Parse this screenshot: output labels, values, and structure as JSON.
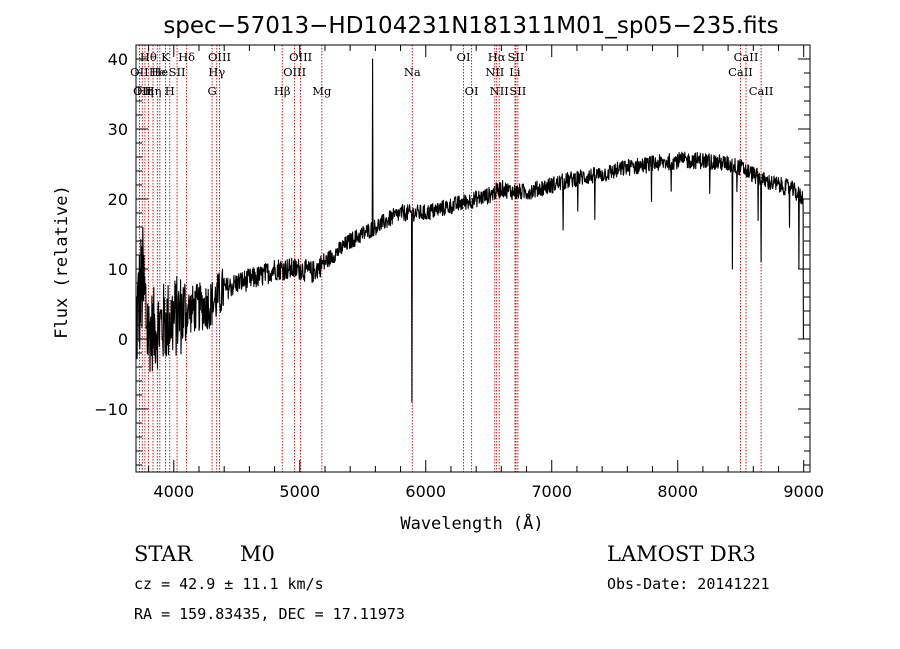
{
  "chart_data": {
    "type": "line",
    "title": "spec−57013−HD104231N181311M01_sp05−235.fits",
    "xlabel": "Wavelength (Å)",
    "ylabel": "Flux (relative)",
    "xlim": [
      3700,
      9050
    ],
    "ylim": [
      -19,
      42
    ],
    "xticks": [
      {
        "value": 4000,
        "label": "4000"
      },
      {
        "value": 5000,
        "label": "5000"
      },
      {
        "value": 6000,
        "label": "6000"
      },
      {
        "value": 7000,
        "label": "7000"
      },
      {
        "value": 8000,
        "label": "8000"
      },
      {
        "value": 9000,
        "label": "9000"
      }
    ],
    "yticks": [
      {
        "value": -10,
        "label": "−10"
      },
      {
        "value": 0,
        "label": "0"
      },
      {
        "value": 10,
        "label": "10"
      },
      {
        "value": 20,
        "label": "20"
      },
      {
        "value": 30,
        "label": "30"
      },
      {
        "value": 40,
        "label": "40"
      }
    ],
    "line_color": "#000000",
    "marker_color": "#cc0000",
    "spectral_lines": [
      {
        "wavelength": 3727,
        "label": "OII",
        "row": 2
      },
      {
        "wavelength": 3750,
        "label": "OII",
        "row": 3
      },
      {
        "wavelength": 3771,
        "label": "Hη",
        "row": 3
      },
      {
        "wavelength": 3798,
        "label": "Hθ",
        "row": 1
      },
      {
        "wavelength": 3835,
        "label": "Hη",
        "row": 3
      },
      {
        "wavelength": 3869,
        "label": "He",
        "row": 2
      },
      {
        "wavelength": 3889,
        "label": "He",
        "row": 2
      },
      {
        "wavelength": 3934,
        "label": "K",
        "row": 1
      },
      {
        "wavelength": 3968,
        "label": "H",
        "row": 3
      },
      {
        "wavelength": 4026,
        "label": "SII",
        "row": 2
      },
      {
        "wavelength": 4102,
        "label": "Hδ",
        "row": 1
      },
      {
        "wavelength": 4304,
        "label": "G",
        "row": 3
      },
      {
        "wavelength": 4341,
        "label": "Hγ",
        "row": 2
      },
      {
        "wavelength": 4363,
        "label": "OIII",
        "row": 1
      },
      {
        "wavelength": 4861,
        "label": "Hβ",
        "row": 3
      },
      {
        "wavelength": 4959,
        "label": "OIII",
        "row": 2
      },
      {
        "wavelength": 5007,
        "label": "OIII",
        "row": 1
      },
      {
        "wavelength": 5175,
        "label": "Mg",
        "row": 3
      },
      {
        "wavelength": 5893,
        "label": "Na",
        "row": 2
      },
      {
        "wavelength": 6300,
        "label": "OI",
        "row": 1
      },
      {
        "wavelength": 6364,
        "label": "OI",
        "row": 3
      },
      {
        "wavelength": 6548,
        "label": "NII",
        "row": 2
      },
      {
        "wavelength": 6563,
        "label": "Hα",
        "row": 1
      },
      {
        "wavelength": 6583,
        "label": "NII",
        "row": 3
      },
      {
        "wavelength": 6708,
        "label": "Li",
        "row": 2
      },
      {
        "wavelength": 6716,
        "label": "SII",
        "row": 1
      },
      {
        "wavelength": 6731,
        "label": "SII",
        "row": 3
      },
      {
        "wavelength": 8498,
        "label": "CaII",
        "row": 2
      },
      {
        "wavelength": 8542,
        "label": "CaII",
        "row": 1
      },
      {
        "wavelength": 8662,
        "label": "CaII",
        "row": 3
      }
    ],
    "series": [
      {
        "name": "flux",
        "anchors": [
          [
            3700,
            2
          ],
          [
            3750,
            8
          ],
          [
            3800,
            1
          ],
          [
            3900,
            2
          ],
          [
            4000,
            3
          ],
          [
            4100,
            4
          ],
          [
            4200,
            4.5
          ],
          [
            4300,
            5
          ],
          [
            4400,
            7
          ],
          [
            4500,
            8
          ],
          [
            4600,
            8.5
          ],
          [
            4700,
            9
          ],
          [
            4800,
            10
          ],
          [
            4900,
            10
          ],
          [
            5000,
            10
          ],
          [
            5100,
            9.5
          ],
          [
            5200,
            11
          ],
          [
            5300,
            12.5
          ],
          [
            5400,
            14
          ],
          [
            5500,
            15
          ],
          [
            5600,
            16
          ],
          [
            5700,
            17
          ],
          [
            5800,
            18
          ],
          [
            5900,
            18
          ],
          [
            6000,
            18
          ],
          [
            6100,
            18.5
          ],
          [
            6200,
            19
          ],
          [
            6300,
            19.5
          ],
          [
            6400,
            20
          ],
          [
            6500,
            20.5
          ],
          [
            6600,
            21.5
          ],
          [
            6700,
            21
          ],
          [
            6800,
            21
          ],
          [
            6900,
            21.5
          ],
          [
            7000,
            22
          ],
          [
            7200,
            23
          ],
          [
            7400,
            23.5
          ],
          [
            7600,
            24.5
          ],
          [
            7800,
            25
          ],
          [
            8000,
            25.5
          ],
          [
            8200,
            25.5
          ],
          [
            8400,
            25
          ],
          [
            8500,
            24.5
          ],
          [
            8600,
            23.5
          ],
          [
            8700,
            22.5
          ],
          [
            8800,
            22
          ],
          [
            8900,
            21.5
          ],
          [
            9000,
            20
          ]
        ],
        "features": [
          {
            "x": 5577,
            "value": 40
          },
          {
            "x": 5890,
            "value": -9
          },
          {
            "x": 8434,
            "value": 10
          },
          {
            "x": 8662,
            "value": 11
          },
          {
            "x": 8963,
            "value": 10
          },
          {
            "x": 9000,
            "value": 0
          }
        ]
      }
    ]
  },
  "info": {
    "object_class": "STAR",
    "subclass": "M0",
    "survey": "LAMOST DR3",
    "cz": "cz = 42.9 ± 11.1 km/s",
    "obs_date": "Obs-Date: 20141221",
    "coords": "RA = 159.83435, DEC =  17.11973"
  }
}
